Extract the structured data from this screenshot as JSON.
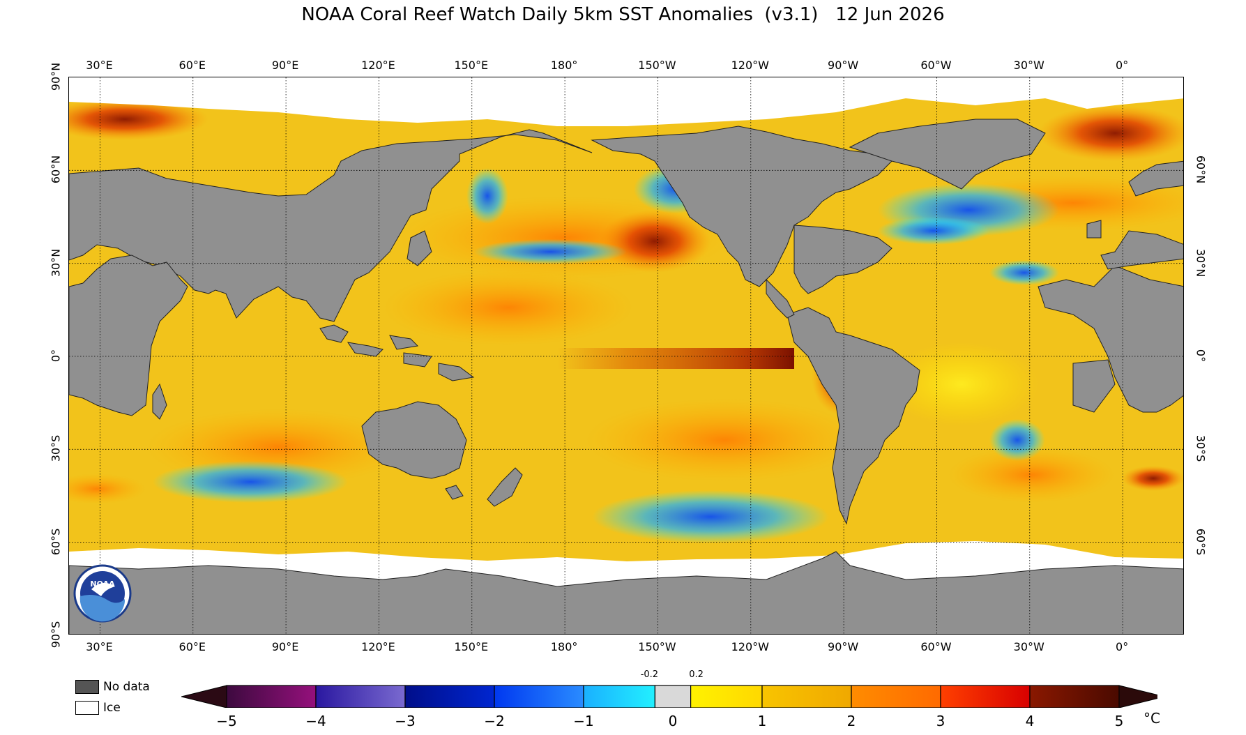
{
  "title": "NOAA Coral Reef Watch Daily 5km SST Anomalies  (v3.1)   12 Jun 2026",
  "map": {
    "projection": "equirectangular",
    "lon_range": [
      20,
      380
    ],
    "lat_range": [
      -90,
      90
    ],
    "top_lon_labels": [
      {
        "lon": 30,
        "label": "30°E"
      },
      {
        "lon": 60,
        "label": "60°E"
      },
      {
        "lon": 90,
        "label": "90°E"
      },
      {
        "lon": 120,
        "label": "120°E"
      },
      {
        "lon": 150,
        "label": "150°E"
      },
      {
        "lon": 180,
        "label": "180°"
      },
      {
        "lon": 210,
        "label": "150°W"
      },
      {
        "lon": 240,
        "label": "120°W"
      },
      {
        "lon": 270,
        "label": "90°W"
      },
      {
        "lon": 300,
        "label": "60°W"
      },
      {
        "lon": 330,
        "label": "30°W"
      },
      {
        "lon": 360,
        "label": "0°"
      }
    ],
    "bottom_lon_labels": [
      {
        "lon": 30,
        "label": "30°E"
      },
      {
        "lon": 60,
        "label": "60°E"
      },
      {
        "lon": 90,
        "label": "90°E"
      },
      {
        "lon": 120,
        "label": "120°E"
      },
      {
        "lon": 150,
        "label": "150°E"
      },
      {
        "lon": 180,
        "label": "180°"
      },
      {
        "lon": 210,
        "label": "150°W"
      },
      {
        "lon": 240,
        "label": "120°W"
      },
      {
        "lon": 270,
        "label": "90°W"
      },
      {
        "lon": 300,
        "label": "60°W"
      },
      {
        "lon": 330,
        "label": "30°W"
      },
      {
        "lon": 360,
        "label": "0°"
      }
    ],
    "left_lat_labels": [
      {
        "lat": 90,
        "label": "90°N"
      },
      {
        "lat": 60,
        "label": "60°N"
      },
      {
        "lat": 30,
        "label": "30°N"
      },
      {
        "lat": 0,
        "label": "0°"
      },
      {
        "lat": -30,
        "label": "30°S"
      },
      {
        "lat": -60,
        "label": "60°S"
      },
      {
        "lat": -90,
        "label": "90°S"
      }
    ],
    "right_lat_labels": [
      {
        "lat": 60,
        "label": "60°N"
      },
      {
        "lat": 30,
        "label": "30°N"
      },
      {
        "lat": 0,
        "label": "0°"
      },
      {
        "lat": -30,
        "label": "30°S"
      },
      {
        "lat": -60,
        "label": "60°S"
      }
    ],
    "grid_lons": [
      30,
      60,
      90,
      120,
      150,
      180,
      210,
      240,
      270,
      300,
      330,
      360
    ],
    "grid_lats": [
      60,
      30,
      0,
      -30,
      -60
    ],
    "colors": {
      "ocean_base": "#f2c31b",
      "land": "#909090",
      "ice": "#ffffff",
      "no_data": "#555555"
    },
    "logo_text": "NOAA"
  },
  "legend": {
    "no_data_label": "No data",
    "ice_label": "Ice",
    "no_data_color": "#555555",
    "ice_color": "#ffffff"
  },
  "colorbar": {
    "min": -5,
    "max": 5,
    "unit": "°C",
    "under_color": "#2b0a14",
    "over_color": "#2b0a0a",
    "bins": [
      {
        "from": -5,
        "to": -4,
        "colors": [
          "#3d0a3f",
          "#95107c"
        ]
      },
      {
        "from": -4,
        "to": -3,
        "colors": [
          "#2a18a0",
          "#7a6ad0"
        ]
      },
      {
        "from": -3,
        "to": -2,
        "colors": [
          "#000e8a",
          "#0026d0"
        ]
      },
      {
        "from": -2,
        "to": -1,
        "colors": [
          "#0038f0",
          "#2a8cff"
        ]
      },
      {
        "from": -1,
        "to": -0.2,
        "colors": [
          "#1ab0ff",
          "#22f0ff"
        ]
      },
      {
        "from": -0.2,
        "to": 0.2,
        "colors": [
          "#d9d9d9",
          "#d9d9d9"
        ]
      },
      {
        "from": 0.2,
        "to": 1,
        "colors": [
          "#fff200",
          "#ffd800"
        ]
      },
      {
        "from": 1,
        "to": 2,
        "colors": [
          "#f8c400",
          "#f0a800"
        ]
      },
      {
        "from": 2,
        "to": 3,
        "colors": [
          "#ff8c00",
          "#ff6a00"
        ]
      },
      {
        "from": 3,
        "to": 4,
        "colors": [
          "#ff4000",
          "#d80000"
        ]
      },
      {
        "from": 4,
        "to": 5,
        "colors": [
          "#8a1800",
          "#4a0a00"
        ]
      }
    ],
    "tick_labels": [
      {
        "value": -5,
        "label": "−5"
      },
      {
        "value": -4,
        "label": "−4"
      },
      {
        "value": -3,
        "label": "−3"
      },
      {
        "value": -2,
        "label": "−2"
      },
      {
        "value": -1,
        "label": "−1"
      },
      {
        "value": 0,
        "label": "0"
      },
      {
        "value": 1,
        "label": "1"
      },
      {
        "value": 2,
        "label": "2"
      },
      {
        "value": 3,
        "label": "3"
      },
      {
        "value": 4,
        "label": "4"
      },
      {
        "value": 5,
        "label": "5"
      }
    ],
    "small_labels": [
      {
        "value": -0.2,
        "label": "-0.2"
      },
      {
        "value": 0.2,
        "label": "0.2"
      }
    ]
  }
}
